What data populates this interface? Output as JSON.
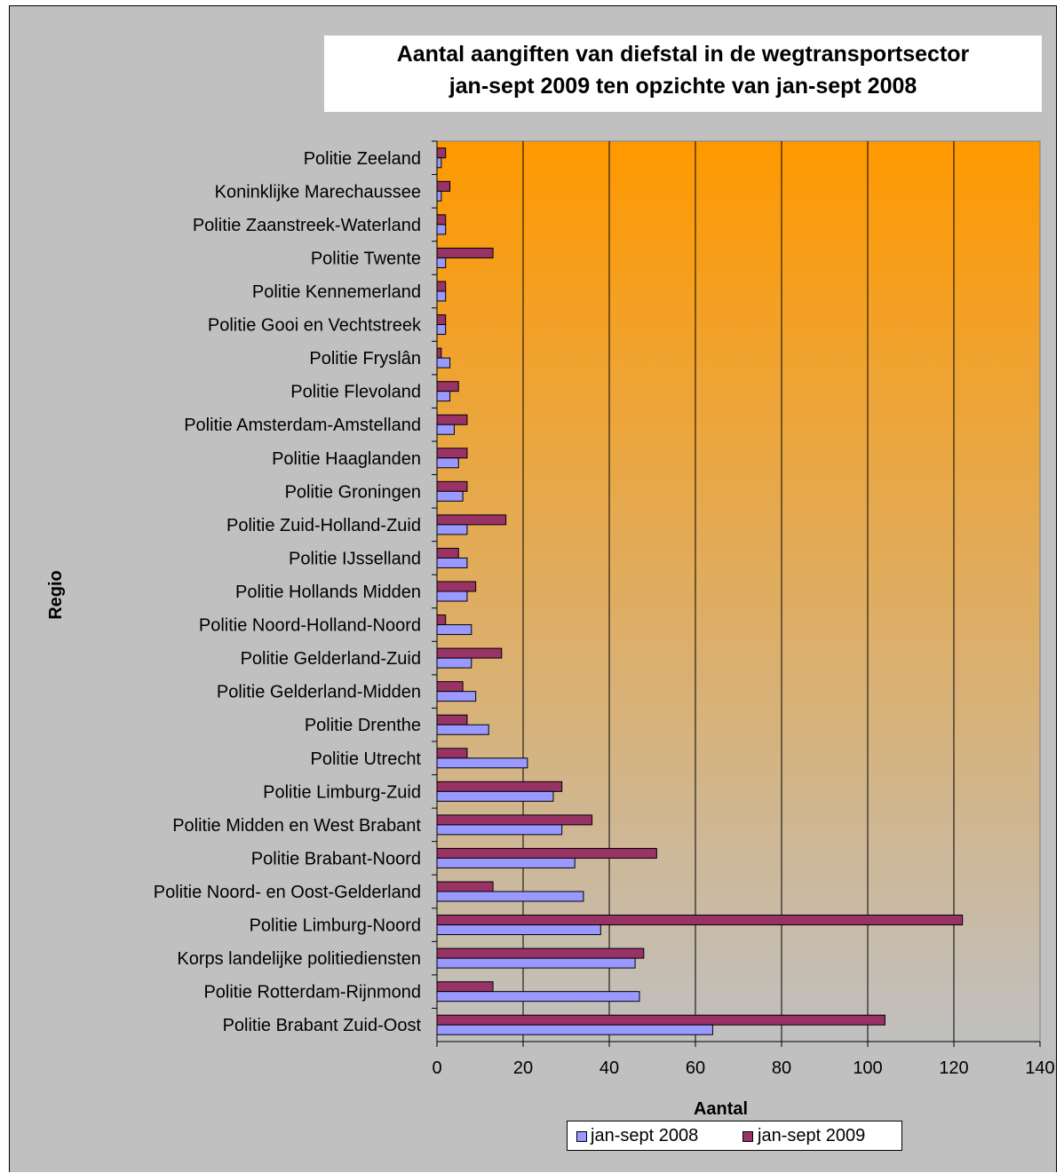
{
  "chart_data": {
    "type": "bar",
    "orientation": "horizontal",
    "title": [
      "Aantal aangiften van diefstal in de wegtransportsector",
      "jan-sept 2009 ten opzichte van jan-sept 2008"
    ],
    "xlabel": "Aantal",
    "ylabel": "Regio",
    "xlim": [
      0,
      140
    ],
    "xticks": [
      0,
      20,
      40,
      60,
      80,
      100,
      120,
      140
    ],
    "grid": "vertical",
    "legend": "bottom",
    "categories": [
      "Politie Zeeland",
      "Koninklijke Marechaussee",
      "Politie Zaanstreek-Waterland",
      "Politie Twente",
      "Politie Kennemerland",
      "Politie Gooi en Vechtstreek",
      "Politie Fryslân",
      "Politie Flevoland",
      "Politie Amsterdam-Amstelland",
      "Politie Haaglanden",
      "Politie Groningen",
      "Politie Zuid-Holland-Zuid",
      "Politie IJsselland",
      "Politie Hollands Midden",
      "Politie Noord-Holland-Noord",
      "Politie Gelderland-Zuid",
      "Politie Gelderland-Midden",
      "Politie Drenthe",
      "Politie Utrecht",
      "Politie Limburg-Zuid",
      "Politie Midden en West Brabant",
      "Politie Brabant-Noord",
      "Politie Noord- en Oost-Gelderland",
      "Politie Limburg-Noord",
      "Korps landelijke politiediensten",
      "Politie Rotterdam-Rijnmond",
      "Politie Brabant Zuid-Oost"
    ],
    "series": [
      {
        "name": "jan-sept 2008",
        "color": "#9999ff",
        "values": [
          1,
          1,
          2,
          2,
          2,
          2,
          3,
          3,
          4,
          5,
          6,
          7,
          7,
          7,
          8,
          8,
          9,
          12,
          21,
          27,
          29,
          32,
          34,
          38,
          46,
          47,
          64
        ]
      },
      {
        "name": "jan-sept 2009",
        "color": "#993366",
        "values": [
          2,
          3,
          2,
          13,
          2,
          2,
          1,
          5,
          7,
          7,
          7,
          16,
          5,
          9,
          2,
          15,
          6,
          7,
          7,
          29,
          36,
          51,
          13,
          122,
          48,
          13,
          104
        ]
      }
    ],
    "plot_background": [
      "#ff9900",
      "#c0c0c0"
    ]
  }
}
